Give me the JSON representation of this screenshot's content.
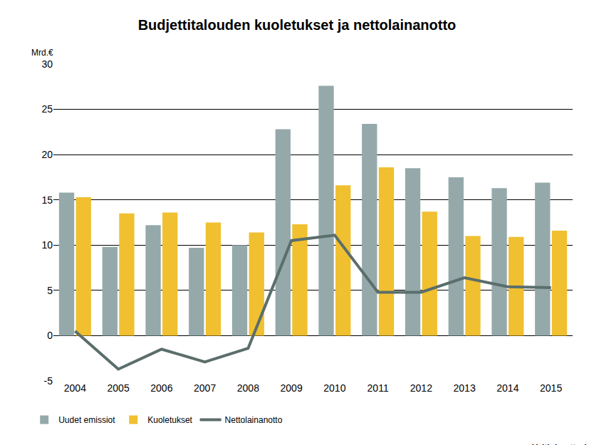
{
  "chart_data": {
    "type": "bar",
    "title": "Budjettitalouden kuoletukset ja nettolainanotto",
    "ylabel": "Mrd.€",
    "annotations": [
      "Valtiokonttori"
    ],
    "categories": [
      "2004",
      "2005",
      "2006",
      "2007",
      "2008",
      "2009",
      "2010",
      "2011",
      "2012",
      "2013",
      "2014",
      "2015"
    ],
    "series": [
      {
        "name": "Uudet emissiot",
        "type": "bar",
        "color": "#95a9ab",
        "values": [
          15.8,
          9.8,
          12.2,
          9.7,
          10.0,
          22.8,
          27.6,
          23.4,
          18.5,
          17.5,
          16.3,
          16.9
        ]
      },
      {
        "name": "Kuoletukset",
        "type": "bar",
        "color": "#f0c030",
        "values": [
          15.3,
          13.5,
          13.6,
          12.5,
          11.4,
          12.3,
          16.6,
          18.6,
          13.7,
          11.0,
          10.9,
          11.6
        ]
      },
      {
        "name": "Nettolainanotto",
        "type": "line",
        "color": "#5a6e6b",
        "values": [
          0.5,
          -3.7,
          -1.5,
          -2.9,
          -1.4,
          10.5,
          11.1,
          4.8,
          4.8,
          6.4,
          5.4,
          5.3
        ]
      }
    ],
    "ylim": [
      -5,
      30
    ],
    "yticks": [
      -5,
      0,
      5,
      10,
      15,
      20,
      25,
      30
    ],
    "grid": true,
    "legend": "bottom-left"
  }
}
